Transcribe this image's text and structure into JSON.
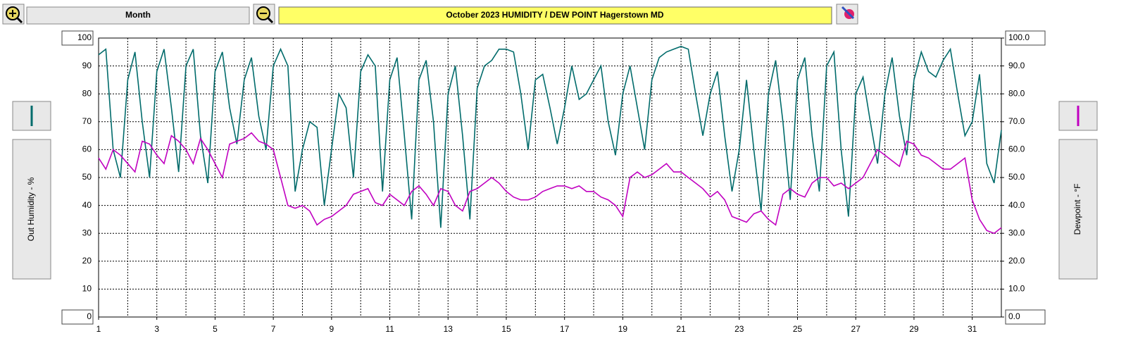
{
  "toolbar": {
    "period": "Month"
  },
  "chart_data": {
    "type": "line",
    "title": "October  2023   HUMIDITY / DEW POINT  Hagerstown MD",
    "ylabel": "Out Humidity - %",
    "y2label": "Dewpoint - °F",
    "xlim": [
      1,
      32
    ],
    "xticks": [
      1,
      3,
      5,
      7,
      9,
      11,
      13,
      15,
      17,
      19,
      21,
      23,
      25,
      27,
      29,
      31
    ],
    "xminorticks": [
      2,
      4,
      6,
      8,
      10,
      12,
      14,
      16,
      18,
      20,
      22,
      24,
      26,
      28,
      30,
      32
    ],
    "ylim": [
      0,
      100
    ],
    "yticks": [
      0,
      10,
      20,
      30,
      40,
      50,
      60,
      70,
      80,
      90,
      100
    ],
    "y2lim": [
      0,
      100
    ],
    "y2ticks": [
      {
        "value": 0,
        "label": "0.0"
      },
      {
        "value": 10,
        "label": "10.0"
      },
      {
        "value": 20,
        "label": "20.0"
      },
      {
        "value": 30,
        "label": "30.0"
      },
      {
        "value": 40,
        "label": "40.0"
      },
      {
        "value": 50,
        "label": "50.0"
      },
      {
        "value": 60,
        "label": "60.0"
      },
      {
        "value": 70,
        "label": "70.0"
      },
      {
        "value": 80,
        "label": "80.0"
      },
      {
        "value": 90,
        "label": "90.0"
      },
      {
        "value": 100,
        "label": "100.0"
      }
    ],
    "grid": true,
    "x": [
      1,
      1.25,
      1.5,
      1.75,
      2,
      2.25,
      2.5,
      2.75,
      3,
      3.25,
      3.5,
      3.75,
      4,
      4.25,
      4.5,
      4.75,
      5,
      5.25,
      5.5,
      5.75,
      6,
      6.25,
      6.5,
      6.75,
      7,
      7.25,
      7.5,
      7.75,
      8,
      8.25,
      8.5,
      8.75,
      9,
      9.25,
      9.5,
      9.75,
      10,
      10.25,
      10.5,
      10.75,
      11,
      11.25,
      11.5,
      11.75,
      12,
      12.25,
      12.5,
      12.75,
      13,
      13.25,
      13.5,
      13.75,
      14,
      14.25,
      14.5,
      14.75,
      15,
      15.25,
      15.5,
      15.75,
      16,
      16.25,
      16.5,
      16.75,
      17,
      17.25,
      17.5,
      17.75,
      18,
      18.25,
      18.5,
      18.75,
      19,
      19.25,
      19.5,
      19.75,
      20,
      20.25,
      20.5,
      20.75,
      21,
      21.25,
      21.5,
      21.75,
      22,
      22.25,
      22.5,
      22.75,
      23,
      23.25,
      23.5,
      23.75,
      24,
      24.25,
      24.5,
      24.75,
      25,
      25.25,
      25.5,
      25.75,
      26,
      26.25,
      26.5,
      26.75,
      27,
      27.25,
      27.5,
      27.75,
      28,
      28.25,
      28.5,
      28.75,
      29,
      29.25,
      29.5,
      29.75,
      30,
      30.25,
      30.5,
      30.75,
      31,
      31.25,
      31.5,
      31.75,
      32
    ],
    "series": [
      {
        "color": "#006b6b",
        "values": [
          94,
          96,
          60,
          50,
          85,
          95,
          70,
          50,
          88,
          96,
          75,
          52,
          90,
          96,
          65,
          48,
          88,
          95,
          75,
          62,
          85,
          93,
          72,
          60,
          90,
          96,
          90,
          45,
          60,
          70,
          68,
          40,
          60,
          80,
          75,
          50,
          88,
          94,
          90,
          45,
          85,
          93,
          65,
          35,
          85,
          92,
          70,
          32,
          80,
          90,
          65,
          35,
          82,
          90,
          92,
          96,
          96,
          95,
          80,
          60,
          85,
          87,
          75,
          62,
          75,
          90,
          78,
          80,
          85,
          90,
          70,
          58,
          80,
          90,
          75,
          60,
          85,
          93,
          95,
          96,
          97,
          96,
          80,
          65,
          80,
          88,
          65,
          45,
          60,
          85,
          60,
          38,
          80,
          92,
          70,
          42,
          85,
          93,
          65,
          45,
          90,
          95,
          60,
          36,
          80,
          86,
          70,
          55,
          80,
          93,
          72,
          58,
          85,
          95,
          88,
          86,
          92,
          96,
          80,
          65,
          70,
          87,
          55,
          48,
          67
        ]
      },
      {
        "color": "#c000c0",
        "axis": "y2",
        "values": [
          57,
          53,
          60,
          58,
          55,
          52,
          63,
          62,
          58,
          55,
          65,
          63,
          60,
          55,
          64,
          60,
          55,
          50,
          62,
          63,
          64,
          66,
          63,
          62,
          60,
          50,
          40,
          39,
          40,
          38,
          33,
          35,
          36,
          38,
          40,
          44,
          45,
          46,
          41,
          40,
          44,
          42,
          40,
          45,
          47,
          44,
          40,
          46,
          45,
          40,
          38,
          45,
          46,
          48,
          50,
          48,
          45,
          43,
          42,
          42,
          43,
          45,
          46,
          47,
          47,
          46,
          47,
          45,
          45,
          43,
          42,
          40,
          36,
          50,
          52,
          50,
          51,
          53,
          55,
          52,
          52,
          50,
          48,
          46,
          43,
          45,
          42,
          36,
          35,
          34,
          37,
          38,
          35,
          33,
          44,
          46,
          44,
          43,
          48,
          50,
          50,
          47,
          48,
          46,
          48,
          50,
          55,
          60,
          58,
          56,
          54,
          63,
          62,
          58,
          57,
          55,
          53,
          53,
          55,
          57,
          42,
          35,
          31,
          30,
          32
        ]
      }
    ]
  }
}
